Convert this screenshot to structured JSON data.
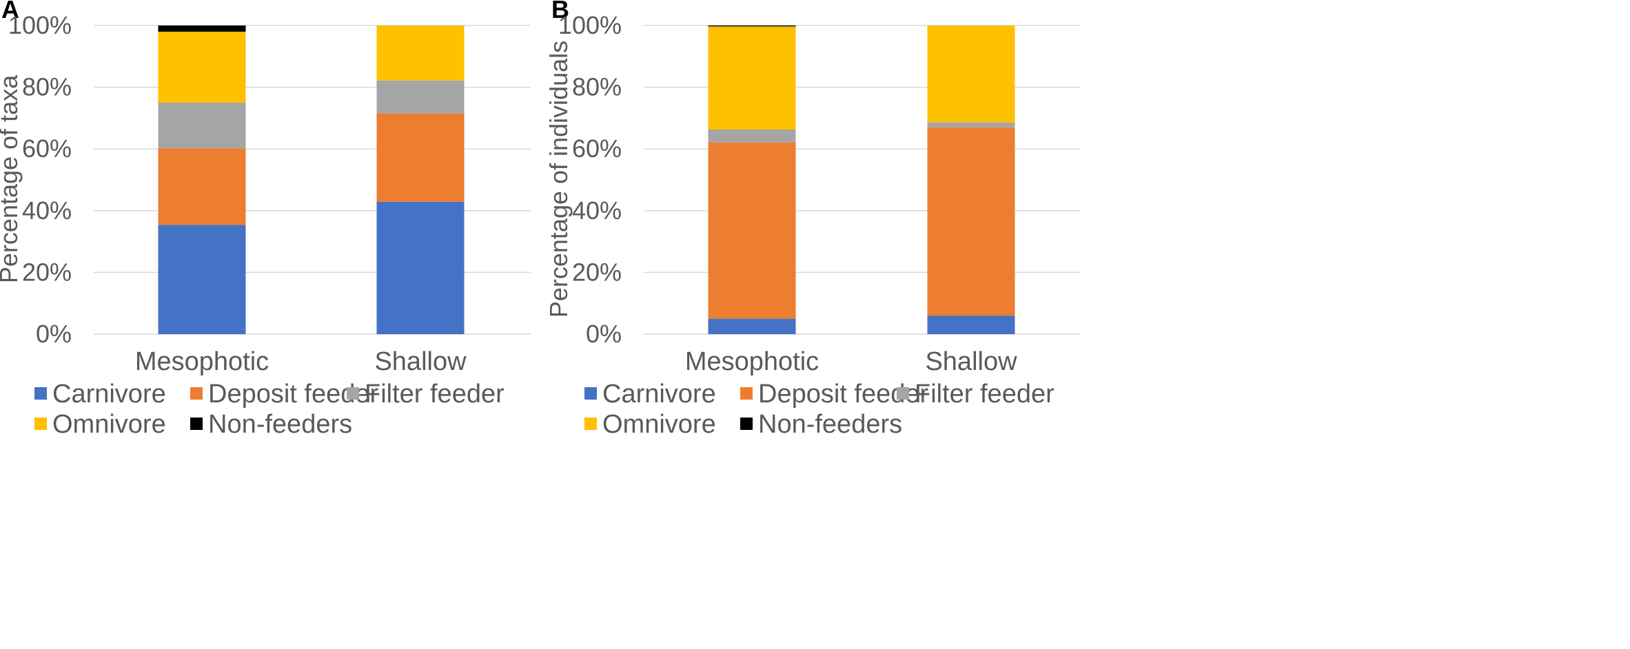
{
  "chart_data": [
    {
      "panel": "A",
      "type": "bar",
      "stacked": "percent",
      "categories": [
        "Mesophotic",
        "Shallow"
      ],
      "ylabel": "Percentage of taxa",
      "ylim": [
        0,
        100
      ],
      "yticks": [
        "0%",
        "20%",
        "40%",
        "60%",
        "80%",
        "100%"
      ],
      "grid": true,
      "legend_position": "bottom",
      "series": [
        {
          "name": "Carnivore",
          "color": "#4472C4",
          "values": [
            35.4,
            42.9
          ]
        },
        {
          "name": "Deposit feeder",
          "color": "#ED7D31",
          "values": [
            24.8,
            28.6
          ]
        },
        {
          "name": "Filter feeder",
          "color": "#A5A5A5",
          "values": [
            14.8,
            10.7
          ]
        },
        {
          "name": "Omnivore",
          "color": "#FFC000",
          "values": [
            23.0,
            17.8
          ]
        },
        {
          "name": "Non-feeders",
          "color": "#000000",
          "values": [
            2.0,
            0.0
          ]
        }
      ]
    },
    {
      "panel": "B",
      "type": "bar",
      "stacked": "percent",
      "categories": [
        "Mesophotic",
        "Shallow"
      ],
      "ylabel": "Percentage of individuals",
      "ylim": [
        0,
        100
      ],
      "yticks": [
        "0%",
        "20%",
        "40%",
        "60%",
        "80%",
        "100%"
      ],
      "grid": true,
      "legend_position": "bottom",
      "series": [
        {
          "name": "Carnivore",
          "color": "#4472C4",
          "values": [
            5.0,
            6.0
          ]
        },
        {
          "name": "Deposit feeder",
          "color": "#ED7D31",
          "values": [
            57.1,
            61.0
          ]
        },
        {
          "name": "Filter feeder",
          "color": "#A5A5A5",
          "values": [
            4.2,
            1.6
          ]
        },
        {
          "name": "Omnivore",
          "color": "#FFC000",
          "values": [
            33.4,
            31.4
          ]
        },
        {
          "name": "Non-feeders",
          "color": "#000000",
          "values": [
            0.3,
            0.0
          ]
        }
      ]
    }
  ]
}
